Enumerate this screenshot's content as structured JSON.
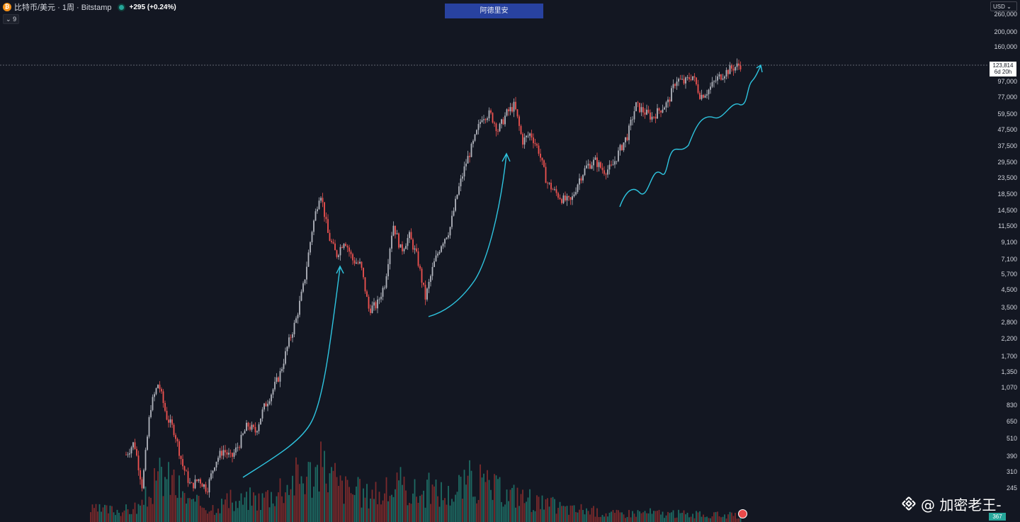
{
  "header": {
    "symbol": "比特币/美元 · 1周 · Bitstamp",
    "coin_glyph": "₿",
    "change": "+295 (+0.24%)",
    "collapse_count": "9"
  },
  "banner": {
    "label": "阿德里安"
  },
  "currency": {
    "label": "USD"
  },
  "price_axis": {
    "ticks": [
      "260,000",
      "200,000",
      "160,000",
      "123,814",
      "97,000",
      "77,000",
      "59,500",
      "47,500",
      "37,500",
      "29,500",
      "23,500",
      "18,500",
      "14,500",
      "11,500",
      "9,100",
      "7,100",
      "5,700",
      "4,500",
      "3,500",
      "2,800",
      "2,200",
      "1,700",
      "1,350",
      "1,070",
      "830",
      "650",
      "510",
      "390",
      "310",
      "245"
    ],
    "last_price": "123,814",
    "countdown": "6d 20h",
    "volume_value": "367"
  },
  "watermark": {
    "text": "@ 加密老王-"
  },
  "colors": {
    "up": "#b2b5be",
    "down": "#ef5350",
    "annotation": "#2ec5e0",
    "volume_up": "#1e6b63",
    "volume_down": "#7a2a2c",
    "background": "#131722"
  },
  "chart_data": {
    "type": "candlestick",
    "scale": "log",
    "ylim": [
      150,
      260000
    ],
    "series": [
      {
        "values": [
          400,
          480,
          250,
          800,
          1150,
          700,
          560,
          340,
          250,
          280,
          240,
          360,
          430,
          380,
          470,
          620,
          560,
          790,
          1000,
          1300,
          2000,
          2900,
          5000,
          11000,
          19500,
          10000,
          7500,
          9500,
          7000,
          6500,
          3400,
          3600,
          5000,
          12000,
          8000,
          10000,
          7200,
          4000,
          6500,
          9000,
          11000,
          19000,
          29000,
          40000,
          58000,
          60000,
          47000,
          60000,
          68000,
          40000,
          45000,
          35000,
          22000,
          19000,
          17000,
          16500,
          23000,
          28000,
          30000,
          26000,
          27000,
          35000,
          44000,
          68000,
          62000,
          57000,
          64000,
          71000,
          100000,
          95000,
          106000,
          78000,
          85000,
          100000,
          110000,
          118000,
          123814
        ]
      }
    ],
    "volume": [
      20,
      25,
      40,
      60,
      80,
      70,
      55,
      40,
      30,
      30,
      25,
      30,
      35,
      30,
      35,
      40,
      38,
      45,
      50,
      60,
      70,
      75,
      80,
      85,
      90,
      75,
      60,
      55,
      50,
      45,
      55,
      45,
      50,
      60,
      55,
      50,
      48,
      55,
      50,
      45,
      50,
      60,
      70,
      65,
      60,
      55,
      50,
      45,
      48,
      40,
      35,
      30,
      28,
      25,
      22,
      20,
      22,
      18,
      16,
      15,
      14,
      14,
      15,
      16,
      16,
      15,
      14,
      13,
      14,
      13,
      12,
      12,
      11,
      12,
      11,
      10,
      10
    ]
  }
}
